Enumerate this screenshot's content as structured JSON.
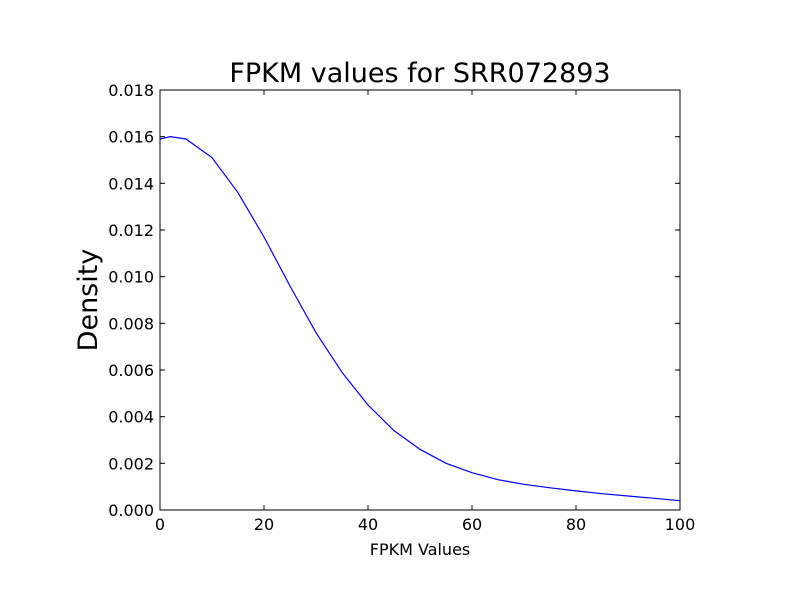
{
  "chart_data": {
    "type": "line",
    "title": "FPKM values for SRR072893",
    "xlabel": "FPKM Values",
    "ylabel": "Density",
    "xlim": [
      0,
      100
    ],
    "ylim": [
      0,
      0.018
    ],
    "x_ticks": [
      "0",
      "20",
      "40",
      "60",
      "80",
      "100"
    ],
    "y_ticks": [
      "0.000",
      "0.002",
      "0.004",
      "0.006",
      "0.008",
      "0.010",
      "0.012",
      "0.014",
      "0.016",
      "0.018"
    ],
    "grid": false,
    "series": [
      {
        "color": "#0000ff",
        "x": [
          0,
          2,
          5,
          10,
          15,
          20,
          25,
          30,
          35,
          40,
          45,
          50,
          55,
          60,
          65,
          70,
          75,
          80,
          85,
          90,
          95,
          100
        ],
        "y": [
          0.0159,
          0.016,
          0.0159,
          0.0151,
          0.0136,
          0.0117,
          0.0096,
          0.0076,
          0.0059,
          0.0045,
          0.0034,
          0.0026,
          0.002,
          0.0016,
          0.0013,
          0.0011,
          0.00095,
          0.00082,
          0.0007,
          0.0006,
          0.0005,
          0.0004
        ]
      }
    ]
  }
}
